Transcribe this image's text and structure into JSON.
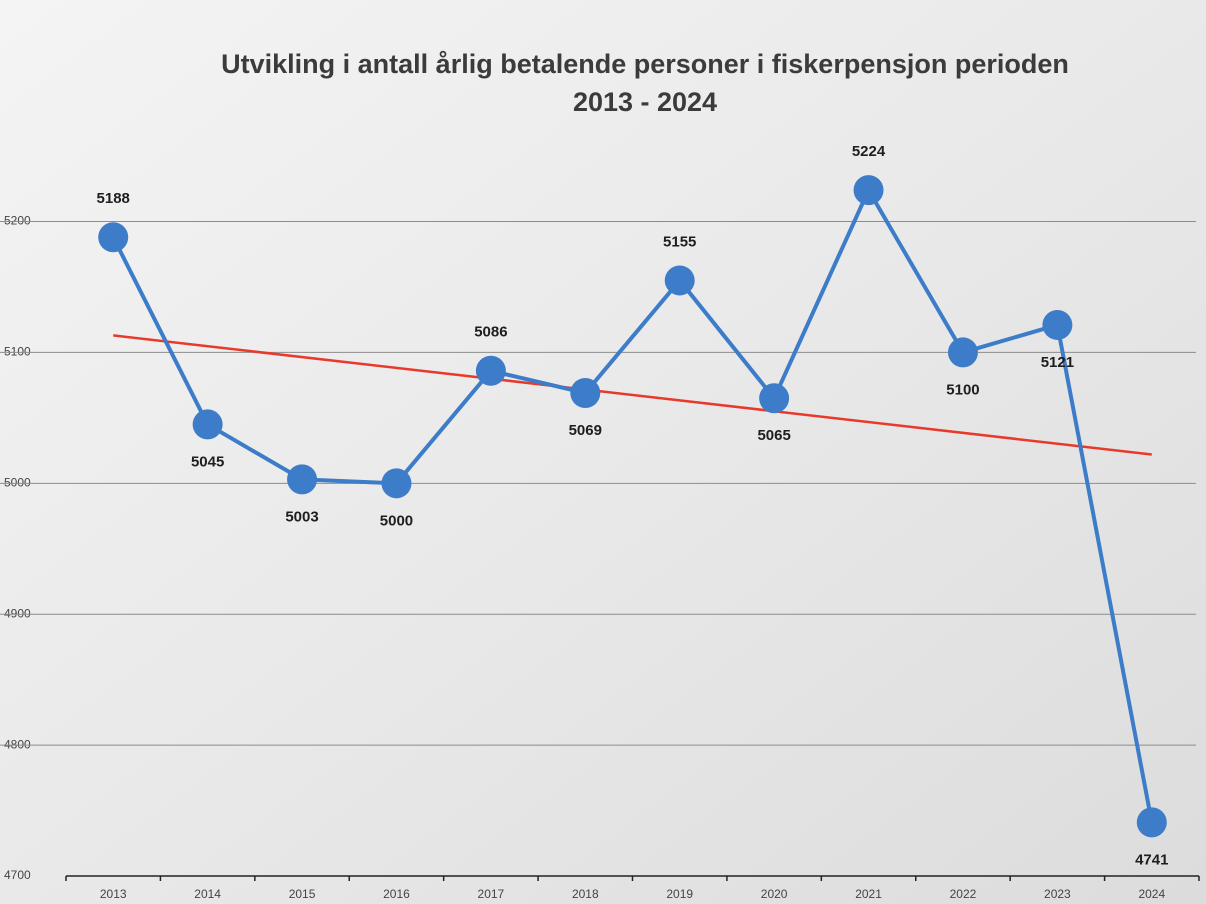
{
  "chart_data": {
    "type": "line",
    "title": [
      "Utvikling i antall årlig betalende personer i fiskerpensjon  perioden",
      "2013 - 2024"
    ],
    "categories": [
      "2013",
      "2014",
      "2015",
      "2016",
      "2017",
      "2018",
      "2019",
      "2020",
      "2021",
      "2022",
      "2023",
      "2024"
    ],
    "series": [
      {
        "color": "#3d7cc9",
        "values": [
          5188,
          5045,
          5003,
          5000,
          5086,
          5069,
          5155,
          5065,
          5224,
          5100,
          5121,
          4741
        ]
      }
    ],
    "trend_line": {
      "color": "#e8392b",
      "values": [
        5113,
        5022
      ]
    },
    "ylim": [
      4700,
      5260
    ],
    "yticks": [
      4700,
      4800,
      4900,
      5000,
      5100,
      5200
    ],
    "grid": true,
    "data_labels": true
  }
}
